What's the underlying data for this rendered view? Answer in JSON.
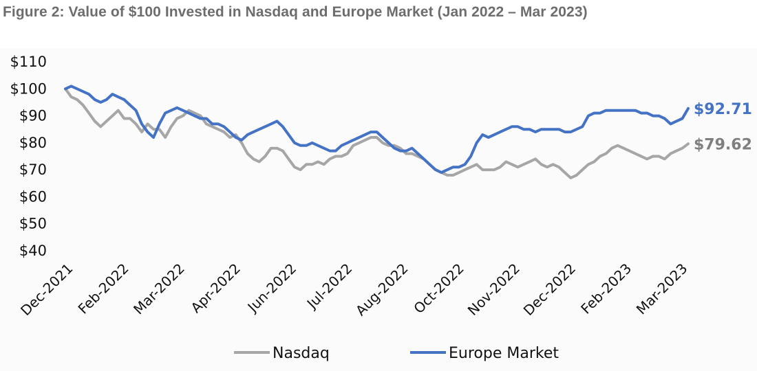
{
  "title": "Figure 2: Value of $100 Invested in Nasdaq and Europe Market (Jan 2022 – Mar 2023)",
  "colors": {
    "nasdaq": "#a6a6a6",
    "europe": "#4472c4",
    "title": "#6d6d6d",
    "text": "#111111"
  },
  "chart_data": {
    "type": "line",
    "title": "Figure 2: Value of $100 Invested in Nasdaq and Europe Market (Jan 2022 – Mar 2023)",
    "xlabel": "",
    "ylabel": "",
    "ylim": [
      40,
      110
    ],
    "yticks": [
      40,
      50,
      60,
      70,
      80,
      90,
      100,
      110
    ],
    "ytick_labels": [
      "$40",
      "$50",
      "$60",
      "$70",
      "$80",
      "$90",
      "$100",
      "$110"
    ],
    "x_tick_labels": [
      "Dec-2021",
      "Feb-2022",
      "Mar-2022",
      "Apr-2022",
      "Jun-2022",
      "Jul-2022",
      "Aug-2022",
      "Oct-2022",
      "Nov-2022",
      "Dec-2022",
      "Feb-2023",
      "Mar-2023"
    ],
    "grid": false,
    "legend_position": "bottom",
    "x": [
      0,
      3,
      6,
      9,
      12,
      15,
      18,
      21,
      24,
      27,
      30,
      33,
      36,
      39,
      42,
      45,
      48,
      51,
      54,
      57,
      60,
      63,
      66,
      69,
      72,
      75,
      78,
      81,
      84,
      87,
      90,
      93,
      96,
      99,
      102,
      105,
      108,
      111,
      114,
      117,
      120,
      123,
      126,
      129,
      132,
      135,
      138,
      141,
      144,
      147,
      150,
      153,
      156,
      159,
      162,
      165,
      168,
      171,
      174,
      177,
      180,
      183,
      186,
      189,
      192,
      195,
      198,
      201,
      204,
      207,
      210,
      213,
      216,
      219,
      222,
      225,
      228,
      231,
      234,
      237,
      240,
      243,
      246,
      249,
      252,
      255,
      258,
      261,
      264,
      267,
      270,
      273,
      276,
      279,
      282,
      285,
      288,
      291,
      294,
      297,
      300,
      303,
      306,
      309,
      312,
      315,
      318
    ],
    "series": [
      {
        "name": "Nasdaq",
        "color": "#a6a6a6",
        "end_label": "$79.62",
        "values": [
          100,
          97,
          96,
          94,
          91,
          88,
          86,
          88,
          90,
          92,
          89,
          89,
          87,
          84,
          87,
          85,
          85,
          82,
          86,
          89,
          90,
          92,
          91,
          90,
          87,
          86,
          85,
          84,
          82,
          83,
          80,
          76,
          74,
          73,
          75,
          78,
          78,
          77,
          74,
          71,
          70,
          72,
          72,
          73,
          72,
          74,
          75,
          75,
          76,
          79,
          80,
          81,
          82,
          82,
          80,
          79,
          79,
          78,
          76,
          76,
          75,
          74,
          72,
          70,
          69,
          68,
          68,
          69,
          70,
          71,
          72,
          70,
          70,
          70,
          71,
          73,
          72,
          71,
          72,
          73,
          74,
          72,
          71,
          72,
          71,
          69,
          67,
          68,
          70,
          72,
          73,
          75,
          76,
          78,
          79,
          78,
          77,
          76,
          75,
          74,
          75,
          75,
          74,
          76,
          77,
          78,
          79.62
        ]
      },
      {
        "name": "Europe Market",
        "color": "#4472c4",
        "end_label": "$92.71",
        "values": [
          100,
          101,
          100,
          99,
          98,
          96,
          95,
          96,
          98,
          97,
          96,
          94,
          92,
          87,
          84,
          82,
          87,
          91,
          92,
          93,
          92,
          91,
          90,
          89,
          89,
          87,
          87,
          86,
          84,
          82,
          81,
          83,
          84,
          85,
          86,
          87,
          88,
          86,
          83,
          80,
          79,
          79,
          80,
          79,
          78,
          77,
          77,
          79,
          80,
          81,
          82,
          83,
          84,
          84,
          82,
          80,
          78,
          77,
          77,
          78,
          76,
          74,
          72,
          70,
          69,
          70,
          71,
          71,
          72,
          75,
          80,
          83,
          82,
          83,
          84,
          85,
          86,
          86,
          85,
          85,
          84,
          85,
          85,
          85,
          85,
          84,
          84,
          85,
          86,
          90,
          91,
          91,
          92,
          92,
          92,
          92,
          92,
          92,
          91,
          91,
          90,
          90,
          89,
          87,
          88,
          89,
          92.71
        ]
      }
    ]
  },
  "legend": {
    "items": [
      {
        "label": "Nasdaq",
        "color": "#a6a6a6"
      },
      {
        "label": "Europe Market",
        "color": "#4472c4"
      }
    ]
  }
}
